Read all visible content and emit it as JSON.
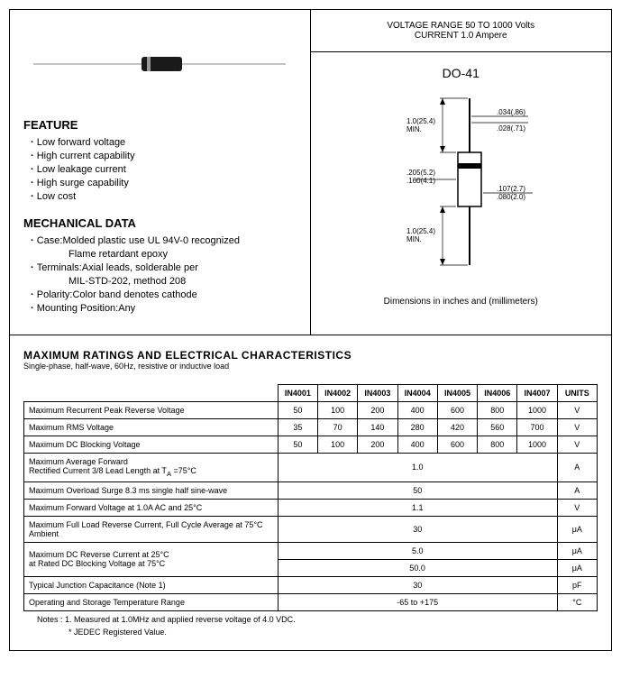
{
  "header": {
    "line1": "VOLTAGE  RANGE 50  TO 1000 Volts",
    "line2": "CURRENT 1.0 Ampere"
  },
  "package": {
    "title": "DO-41",
    "caption": "Dimensions in inches and (millimeters)",
    "dims": {
      "lead_len": "1.0(25.4)",
      "lead_min": "MIN.",
      "body_dia1": ".205(5.2)",
      "body_dia2": ".160(4.1)",
      "lead_dia1": ".034(.86)",
      "lead_dia2": ".028(.71)",
      "body_len1": ".107(2.7)",
      "body_len2": ".080(2.0)"
    }
  },
  "feature": {
    "title": "FEATURE",
    "items": [
      "Low forward voltage",
      "High current capability",
      "Low leakage current",
      "High surge capability",
      "Low cost"
    ]
  },
  "mechanical": {
    "title": "MECHANICAL DATA",
    "case": "Case:Molded plastic use UL 94V-0 recognized",
    "case_sub": "Flame retardant epoxy",
    "term": "Terminals:Axial leads, solderable per",
    "term_sub": "MIL-STD-202, method 208",
    "polarity": "Polarity:Color band denotes cathode",
    "mounting": "Mounting Position:Any"
  },
  "ratings": {
    "title": "MAXIMUM RATINGS AND ELECTRICAL CHARACTERISTICS",
    "subtitle": "Single-phase, half-wave, 60Hz, resistive or inductive load",
    "columns": [
      "IN4001",
      "IN4002",
      "IN4003",
      "IN4004",
      "IN4005",
      "IN4006",
      "IN4007",
      "UNITS"
    ],
    "rows": [
      {
        "param": "Maximum Recurrent Peak Reverse Voltage",
        "vals": [
          "50",
          "100",
          "200",
          "400",
          "600",
          "800",
          "1000"
        ],
        "unit": "V"
      },
      {
        "param": "Maximum RMS Voltage",
        "vals": [
          "35",
          "70",
          "140",
          "280",
          "420",
          "560",
          "700"
        ],
        "unit": "V"
      },
      {
        "param": "Maximum DC Blocking Voltage",
        "vals": [
          "50",
          "100",
          "200",
          "400",
          "600",
          "800",
          "1000"
        ],
        "unit": "V"
      }
    ],
    "merged_rows": [
      {
        "param": "Maximum Average Forward\nRectified Current 3/8 Lead Length at  T<sub>A</sub> =75°C",
        "val": "1.0",
        "unit": "A"
      },
      {
        "param": "Maximum Overload Surge 8.3 ms single half sine-wave",
        "val": "50",
        "unit": "A"
      },
      {
        "param": "Maximum Forward Voltage at 1.0A AC and 25°C",
        "val": "1.1",
        "unit": "V"
      },
      {
        "param": "Maximum Full Load Reverse Current, Full Cycle Average at 75°C Ambient",
        "val": "30",
        "unit": "μA"
      }
    ],
    "double_row": {
      "param1": "Maximum DC Reverse Current at 25°C",
      "param2": "at Rated DC Blocking Voltage at 75°C",
      "val1": "5.0",
      "val2": "50.0",
      "unit": "μA"
    },
    "final_rows": [
      {
        "param": "Typical Junction Capacitance (Note 1)",
        "val": "30",
        "unit": "pF"
      },
      {
        "param": "Operating and Storage Temperature Range",
        "val": "-65 to +175",
        "unit": "°C"
      }
    ]
  },
  "notes": {
    "line1": "Notes : 1. Measured at 1.0MHz and applied reverse voltage of 4.0 VDC.",
    "line2": "* JEDEC Registered Value."
  }
}
